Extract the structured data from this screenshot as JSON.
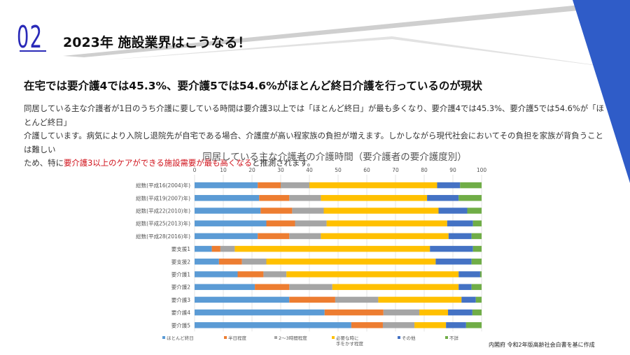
{
  "section": {
    "number": "02",
    "title": "2023年 施設業界はこうなる！"
  },
  "subheading": "在宅では要介護4では45.3%、要介護5では54.6%がほとんど終日介護を行っているのが現状",
  "body": {
    "line1": "同居している主な介護者が1日のうち介護に要している時間は要介護3以上では「ほとんど終日」が最も多くなり、要介護4では45.3%、要介護5では54.6%が「ほとんど終日」",
    "line2": "介護しています。病気により入院し退院先が自宅である場合、介護度が高い程家族の負担が増えます。しかしながら現代社会においてその負担を家族が背負うことは難しい",
    "line3_pre": "ため、特に",
    "line3_highlight": "要介護3以上のケアができる施設需要が最も高くなる",
    "line3_post": "と推測されます。"
  },
  "source": "内閣府 令和2年版高齢社会白書を基に作成",
  "colors": {
    "accent_blue": "#2a2ab8",
    "triangle_blue": "#2f5cc8",
    "highlight_red": "#d0121b"
  },
  "chart_data": {
    "type": "bar",
    "orientation": "horizontal",
    "stacked": true,
    "title": "同居している主な介護者の介護時間（要介護者の要介護度別）",
    "xlim": [
      0,
      100
    ],
    "xticks": [
      "0",
      "10",
      "20",
      "30",
      "40",
      "50",
      "60",
      "70",
      "80",
      "90",
      "100"
    ],
    "grid": true,
    "legend_position": "bottom",
    "categories": [
      "総数(平成16(2004)年)",
      "総数(平成19(2007)年)",
      "総数(平成22(2010)年)",
      "総数(平成25(2013)年)",
      "総数(平成28(2016)年)",
      "要支援1",
      "要支援2",
      "要介護1",
      "要介護2",
      "要介護3",
      "要介護4",
      "要介護5"
    ],
    "series": [
      {
        "name": "ほとんど終日",
        "color": "#5b9bd5",
        "values": [
          22,
          22.5,
          23,
          25,
          22,
          6,
          8.5,
          15,
          21,
          33,
          45.3,
          54.6
        ]
      },
      {
        "name": "半日程度",
        "color": "#ed7d31",
        "values": [
          8,
          10.5,
          11,
          10,
          11,
          3,
          8,
          9,
          12,
          16,
          20.5,
          11
        ]
      },
      {
        "name": "2～3時間程度",
        "color": "#a5a5a5",
        "values": [
          10,
          11,
          11,
          11,
          11,
          5,
          8.5,
          8,
          15,
          15,
          12.5,
          11
        ]
      },
      {
        "name": "必要な時に手をかす程度",
        "color": "#ffc000",
        "values": [
          44.5,
          37,
          40,
          42,
          44.5,
          68,
          59,
          60,
          44,
          29,
          10,
          11
        ]
      },
      {
        "name": "その他",
        "color": "#4472c4",
        "values": [
          8,
          11,
          10,
          9,
          8,
          15,
          12.5,
          7.5,
          4.5,
          5,
          8.5,
          7
        ]
      },
      {
        "name": "不詳",
        "color": "#70ad47",
        "values": [
          7.5,
          8,
          5,
          3,
          3.5,
          3,
          3.5,
          0.5,
          3.5,
          2,
          3.2,
          5.4
        ]
      }
    ]
  }
}
